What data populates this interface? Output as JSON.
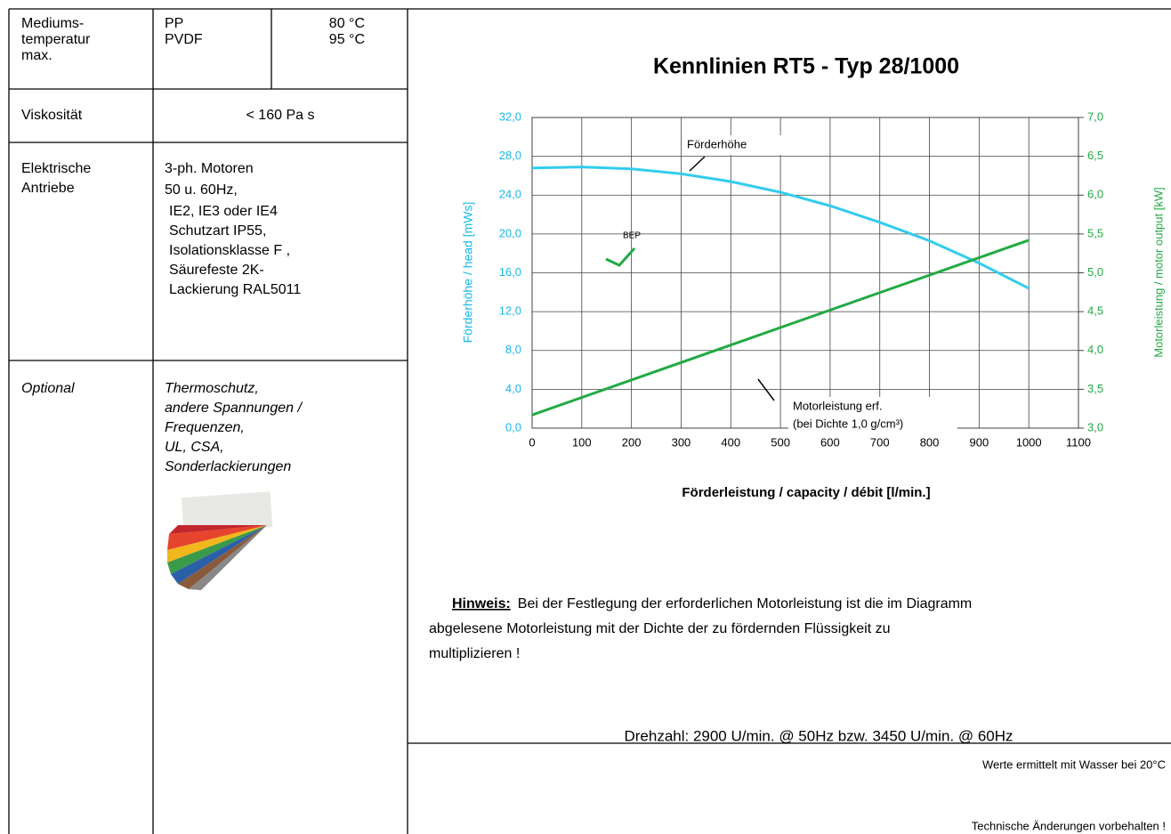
{
  "table": {
    "medium_temp": {
      "label": [
        "Mediums-",
        "temperatur",
        "max."
      ],
      "materials": [
        "PP",
        "PVDF"
      ],
      "temps": [
        "80 °C",
        "95 °C"
      ]
    },
    "viscosity": {
      "label": "Viskosität",
      "value": "< 160 Pa s"
    },
    "drives": {
      "label": [
        "Elektrische",
        "Antriebe"
      ],
      "lines": [
        "3-ph. Motoren",
        "50 u. 60Hz,",
        "IE2, IE3 oder IE4",
        "Schutzart IP55,",
        "Isolationsklasse F ,",
        "Säurefeste 2K-",
        "Lackierung RAL5011"
      ]
    },
    "optional": {
      "label": "Optional",
      "lines": [
        "Thermoschutz,",
        "andere Spannungen /",
        "Frequenzen,",
        "UL, CSA,",
        "Sonderlackierungen"
      ]
    }
  },
  "chart_data": {
    "type": "line",
    "title": "Kennlinien  RT5  -  Typ 28/1000",
    "x_label": "Förderleistung / capacity / débit [l/min.]",
    "y_label": "Förderhöhe / head  [mWs]",
    "y2_label": "Motorleistung  / motor output [kW]",
    "annotations": [
      "Förderhöhe",
      "BEP",
      "Motorleistung erf.",
      "(bei Dichte 1,0 g/cm³)"
    ],
    "grid": true,
    "xlim": [
      0,
      1100
    ],
    "xticks": [
      0,
      100,
      200,
      300,
      400,
      500,
      600,
      700,
      800,
      900,
      1000,
      1100
    ],
    "ylim": [
      0,
      32
    ],
    "yticks": [
      {
        "value": 0,
        "label": "0,0"
      },
      {
        "value": 4,
        "label": "4,0"
      },
      {
        "value": 8,
        "label": "8,0"
      },
      {
        "value": 12,
        "label": "12,0"
      },
      {
        "value": 16,
        "label": "16,0"
      },
      {
        "value": 20,
        "label": "20,0"
      },
      {
        "value": 24,
        "label": "24,0"
      },
      {
        "value": 28,
        "label": "28,0"
      },
      {
        "value": 32,
        "label": "32,0"
      }
    ],
    "y2lim": [
      3,
      7
    ],
    "y2ticks": [
      {
        "value": 3,
        "label": "3,0"
      },
      {
        "value": 3.5,
        "label": "3,5"
      },
      {
        "value": 4,
        "label": "4,0"
      },
      {
        "value": 4.5,
        "label": "4,5"
      },
      {
        "value": 5,
        "label": "5,0"
      },
      {
        "value": 5.5,
        "label": "5,5"
      },
      {
        "value": 6,
        "label": "6,0"
      },
      {
        "value": 6.5,
        "label": "6,5"
      },
      {
        "value": 7,
        "label": "7,0"
      }
    ],
    "y_color": "#1ab8e8",
    "y2_color": "#22aa44",
    "series": [
      {
        "color": "#33ccee",
        "x": [
          0,
          100,
          200,
          300,
          400,
          500,
          600,
          700,
          800,
          900,
          1000
        ],
        "values": [
          26.8,
          26.9,
          26.7,
          26.2,
          25.4,
          24.3,
          22.9,
          21.2,
          19.3,
          17.0,
          14.4
        ]
      },
      {
        "color": "#22aa44",
        "axis": "y2",
        "x": [
          0,
          1000
        ],
        "values": [
          3.17,
          5.42
        ]
      }
    ]
  },
  "note": {
    "label": "Hinweis:",
    "lines": [
      "Bei der Festlegung der erforderlichen Motorleistung ist die im Diagramm",
      "abgelesene Motorleistung mit der Dichte der zu fördernden Flüssigkeit zu",
      "multiplizieren !"
    ]
  },
  "speed": "Drehzahl: 2900 U/min. @ 50Hz  bzw.  3450 U/min. @ 60Hz",
  "footer": [
    "Werte ermittelt mit Wasser bei 20°C",
    "Technische Änderungen vorbehalten !"
  ]
}
